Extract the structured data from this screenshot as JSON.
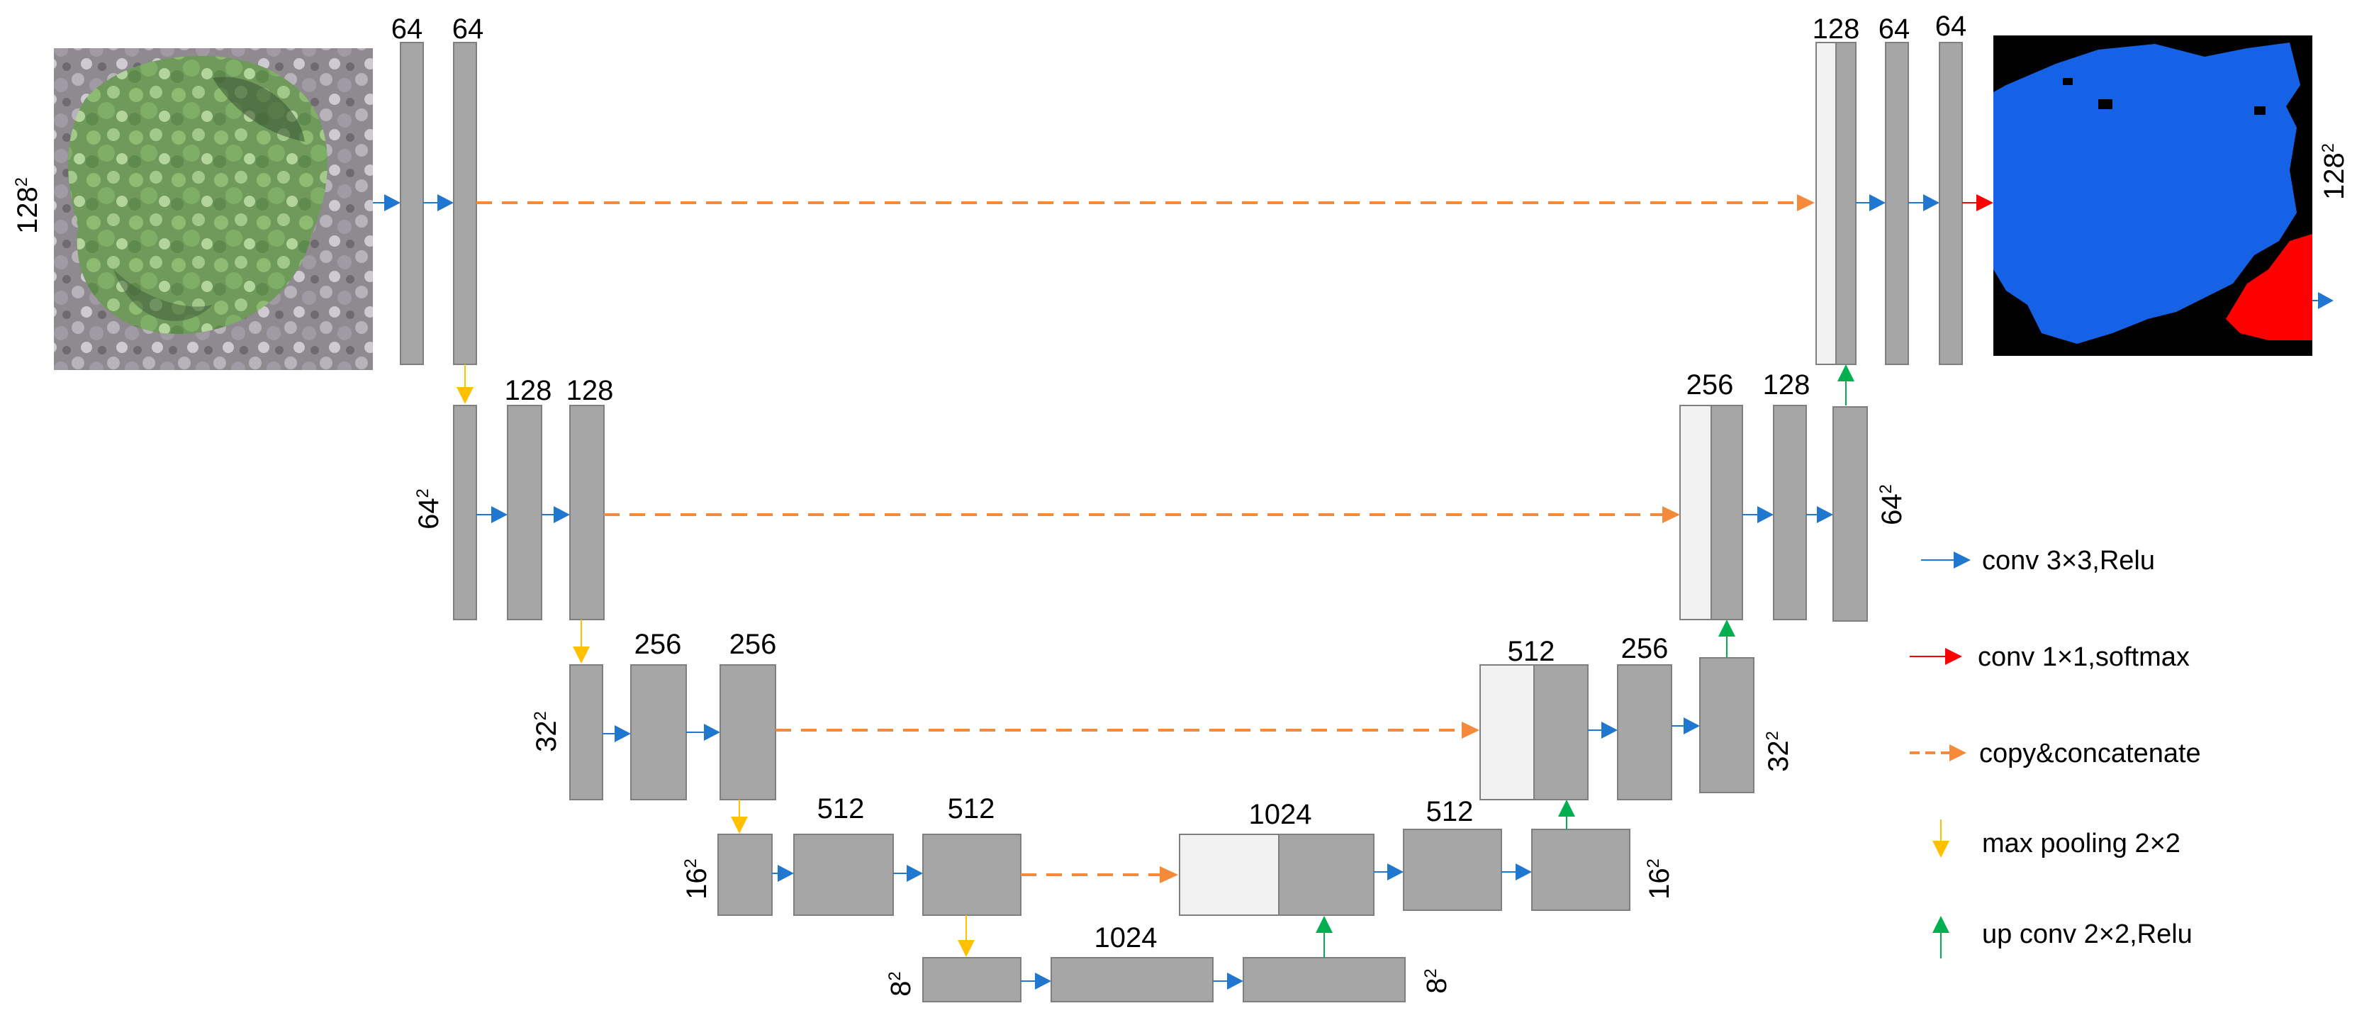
{
  "colors": {
    "feature_map": "#a6a6a6",
    "copied_map": "#f2f2f2",
    "map_stroke": "#7f7f7f",
    "conv": "#1f77d0",
    "conv_softmax": "#ff0000",
    "copy": "#f58a3a",
    "pool": "#ffc000",
    "upconv": "#00b050"
  },
  "channels": {
    "l1_a": "64",
    "l1_b": "64",
    "l2_a": "128",
    "l2_b": "128",
    "l3_a": "256",
    "l3_b": "256",
    "l4_a": "512",
    "l4_b": "512",
    "l5": "1024",
    "u4": "1024",
    "u4_b": "512",
    "u3": "512",
    "u3_b": "256",
    "u2": "256",
    "u2_b": "128",
    "u1": "128",
    "u1_b": "64",
    "u1_c": "64"
  },
  "resolutions": {
    "r128": "128",
    "r64": "64",
    "r32": "32",
    "r16": "16",
    "r8": "8",
    "exp": "2"
  },
  "legend": {
    "conv": "conv 3×3,Relu",
    "conv_softmax": "conv 1×1,softmax",
    "copy": "copy&concatenate",
    "pool": "max pooling 2×2",
    "upconv": "up conv 2×2,Relu"
  },
  "icons": {
    "input": "aerial-tree-crown-image",
    "output": "segmentation-mask-image"
  }
}
